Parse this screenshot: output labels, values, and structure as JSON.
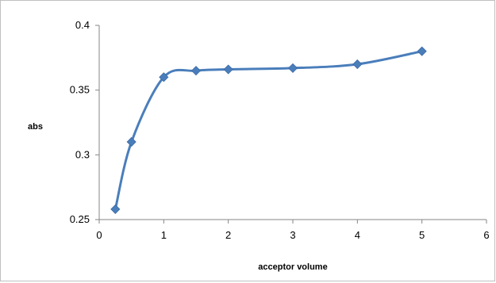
{
  "chart_data": {
    "type": "line",
    "title": "",
    "xlabel": "acceptor volume",
    "ylabel": "abs",
    "xlim": [
      0,
      6
    ],
    "ylim": [
      0.25,
      0.4
    ],
    "x_ticks": [
      0,
      1,
      2,
      3,
      4,
      5,
      6
    ],
    "y_ticks": [
      0.25,
      0.3,
      0.35,
      0.4
    ],
    "x_tick_labels": [
      "0",
      "1",
      "2",
      "3",
      "4",
      "5",
      "6"
    ],
    "y_tick_labels": [
      "0.25",
      "0.3",
      "0.35",
      "0.4"
    ],
    "grid": false,
    "legend": "none",
    "smoothed": true,
    "marker": "diamond",
    "series": [
      {
        "x": [
          0.25,
          0.5,
          1,
          1.5,
          2,
          3,
          4,
          5
        ],
        "y": [
          0.258,
          0.31,
          0.36,
          0.365,
          0.366,
          0.367,
          0.37,
          0.38
        ],
        "color": "#4a7ebb"
      }
    ]
  }
}
